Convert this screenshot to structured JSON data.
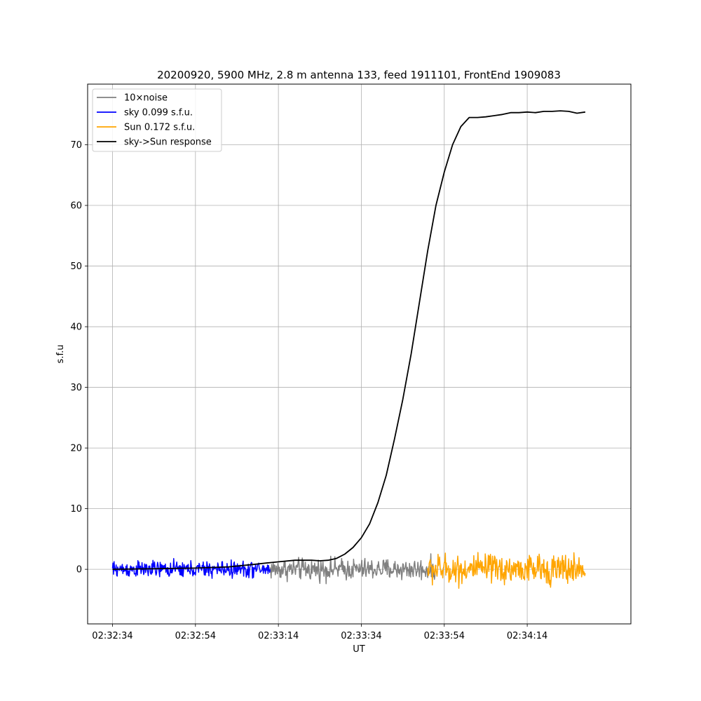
{
  "chart_data": {
    "type": "line",
    "title": "20200920, 5900 MHz, 2.8 m antenna 133, feed 1911101, FrontEnd 1909083",
    "xlabel": "UT",
    "ylabel": "s.f.u",
    "x_unit": "seconds",
    "x_ticks": [
      {
        "t": 0,
        "label": "02:32:34"
      },
      {
        "t": 20,
        "label": "02:32:54"
      },
      {
        "t": 40,
        "label": "02:33:14"
      },
      {
        "t": 60,
        "label": "02:33:34"
      },
      {
        "t": 80,
        "label": "02:33:54"
      },
      {
        "t": 100,
        "label": "02:34:14"
      }
    ],
    "xlim": [
      "02:32:28",
      "02:34:39"
    ],
    "ylim": [
      -9,
      80
    ],
    "y_ticks": [
      0,
      10,
      20,
      30,
      40,
      50,
      60,
      70
    ],
    "grid": true,
    "legend_position": "top-left",
    "series": [
      {
        "name": "10×noise",
        "color": "#808080",
        "style": "noise",
        "t_range": [
          38,
          78
        ],
        "amplitude": 1.3
      },
      {
        "name": "sky 0.099 s.f.u.",
        "color": "#0000ff",
        "style": "noise",
        "t_range": [
          0,
          38
        ],
        "amplitude": 1.0
      },
      {
        "name": "Sun 0.172 s.f.u.",
        "color": "#ffa500",
        "style": "noise",
        "t_range": [
          76,
          114
        ],
        "amplitude": 1.8
      },
      {
        "name": "sky->Sun response",
        "color": "#000000",
        "style": "line",
        "points": [
          [
            0,
            0.0
          ],
          [
            10,
            0.1
          ],
          [
            20,
            0.2
          ],
          [
            28,
            0.4
          ],
          [
            34,
            0.8
          ],
          [
            38,
            1.1
          ],
          [
            41,
            1.3
          ],
          [
            44,
            1.5
          ],
          [
            48,
            1.5
          ],
          [
            50,
            1.4
          ],
          [
            52,
            1.5
          ],
          [
            54,
            1.8
          ],
          [
            56,
            2.5
          ],
          [
            58,
            3.6
          ],
          [
            60,
            5.2
          ],
          [
            62,
            7.5
          ],
          [
            64,
            11.0
          ],
          [
            66,
            15.5
          ],
          [
            68,
            21.5
          ],
          [
            70,
            28.0
          ],
          [
            72,
            35.5
          ],
          [
            74,
            44.0
          ],
          [
            76,
            52.5
          ],
          [
            78,
            60.0
          ],
          [
            80,
            65.5
          ],
          [
            82,
            70.0
          ],
          [
            84,
            73.0
          ],
          [
            86,
            74.5
          ],
          [
            88,
            74.5
          ],
          [
            90,
            74.6
          ],
          [
            92,
            74.8
          ],
          [
            94,
            75.0
          ],
          [
            96,
            75.3
          ],
          [
            98,
            75.3
          ],
          [
            100,
            75.4
          ],
          [
            102,
            75.3
          ],
          [
            104,
            75.5
          ],
          [
            106,
            75.5
          ],
          [
            108,
            75.6
          ],
          [
            110,
            75.5
          ],
          [
            112,
            75.2
          ],
          [
            114,
            75.4
          ]
        ]
      }
    ]
  }
}
